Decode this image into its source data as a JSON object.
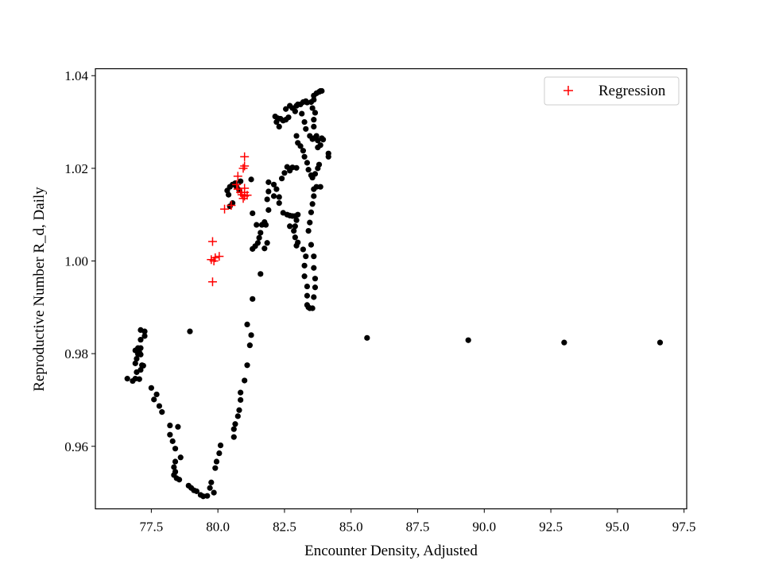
{
  "chart_data": {
    "type": "scatter",
    "title": "",
    "xlabel": "Encounter Density, Adjusted",
    "ylabel": "Reproductive Number R_d, Daily",
    "xlim": [
      75.4,
      97.6
    ],
    "ylim": [
      0.9465,
      1.0415
    ],
    "xticks": [
      77.5,
      80.0,
      82.5,
      85.0,
      87.5,
      90.0,
      92.5,
      95.0,
      97.5
    ],
    "xtick_labels": [
      "77.5",
      "80.0",
      "82.5",
      "85.0",
      "87.5",
      "90.0",
      "92.5",
      "95.0",
      "97.5"
    ],
    "yticks": [
      0.96,
      0.98,
      1.0,
      1.02,
      1.04
    ],
    "ytick_labels": [
      "0.96",
      "0.98",
      "1.00",
      "1.02",
      "1.04"
    ],
    "grid": false,
    "legend_position": "top-right",
    "series": [
      {
        "color": "#000000",
        "marker": "dot",
        "points": [
          [
            76.6,
            0.9746
          ],
          [
            76.8,
            0.9741
          ],
          [
            76.9,
            0.9746
          ],
          [
            76.95,
            0.976
          ],
          [
            77.05,
            0.9745
          ],
          [
            77.1,
            0.9765
          ],
          [
            77.15,
            0.9775
          ],
          [
            77.2,
            0.9774
          ],
          [
            76.9,
            0.9779
          ],
          [
            76.95,
            0.9789
          ],
          [
            77.0,
            0.9799
          ],
          [
            77.1,
            0.9798
          ],
          [
            77.1,
            0.9812
          ],
          [
            76.9,
            0.9807
          ],
          [
            77.0,
            0.9812
          ],
          [
            77.05,
            0.9803
          ],
          [
            77.1,
            0.983
          ],
          [
            77.1,
            0.9851
          ],
          [
            77.25,
            0.9848
          ],
          [
            77.25,
            0.9838
          ],
          [
            77.5,
            0.9726
          ],
          [
            77.7,
            0.9712
          ],
          [
            77.6,
            0.9701
          ],
          [
            77.8,
            0.9687
          ],
          [
            77.9,
            0.9674
          ],
          [
            78.2,
            0.9645
          ],
          [
            78.2,
            0.9625
          ],
          [
            78.3,
            0.9611
          ],
          [
            78.4,
            0.9595
          ],
          [
            78.5,
            0.9642
          ],
          [
            78.6,
            0.9576
          ],
          [
            78.4,
            0.9567
          ],
          [
            78.35,
            0.9555
          ],
          [
            78.4,
            0.9545
          ],
          [
            78.35,
            0.9538
          ],
          [
            78.45,
            0.9531
          ],
          [
            78.55,
            0.9528
          ],
          [
            78.9,
            0.9515
          ],
          [
            79.0,
            0.951
          ],
          [
            79.1,
            0.9505
          ],
          [
            79.2,
            0.9503
          ],
          [
            79.35,
            0.9495
          ],
          [
            79.45,
            0.9492
          ],
          [
            79.6,
            0.9493
          ],
          [
            79.7,
            0.951
          ],
          [
            79.75,
            0.9522
          ],
          [
            79.85,
            0.95
          ],
          [
            79.9,
            0.9553
          ],
          [
            79.95,
            0.9567
          ],
          [
            80.05,
            0.9585
          ],
          [
            80.1,
            0.9602
          ],
          [
            78.95,
            0.9848
          ],
          [
            80.6,
            0.962
          ],
          [
            80.6,
            0.9637
          ],
          [
            80.65,
            0.9648
          ],
          [
            80.75,
            0.9665
          ],
          [
            80.8,
            0.9678
          ],
          [
            80.85,
            0.97
          ],
          [
            80.85,
            0.9716
          ],
          [
            81.0,
            0.9742
          ],
          [
            81.1,
            0.9775
          ],
          [
            81.2,
            0.9818
          ],
          [
            81.25,
            0.984
          ],
          [
            81.1,
            0.9863
          ],
          [
            81.3,
            0.9918
          ],
          [
            81.6,
            0.9972
          ],
          [
            81.3,
            1.0026
          ],
          [
            81.4,
            1.0032
          ],
          [
            81.5,
            1.0039
          ],
          [
            81.55,
            1.005
          ],
          [
            81.6,
            1.0061
          ],
          [
            81.45,
            1.0078
          ],
          [
            81.65,
            1.0078
          ],
          [
            81.8,
            1.0078
          ],
          [
            81.3,
            1.0103
          ],
          [
            81.25,
            1.0176
          ],
          [
            80.55,
            1.0125
          ],
          [
            80.45,
            1.0118
          ],
          [
            80.4,
            1.0143
          ],
          [
            80.35,
            1.0152
          ],
          [
            80.45,
            1.016
          ],
          [
            80.55,
            1.0165
          ],
          [
            80.65,
            1.0168
          ],
          [
            80.85,
            1.0172
          ],
          [
            80.7,
            1.016
          ],
          [
            80.8,
            1.0153
          ],
          [
            81.75,
            1.0027
          ],
          [
            81.85,
            1.0039
          ],
          [
            81.75,
            1.0084
          ],
          [
            81.9,
            1.011
          ],
          [
            81.85,
            1.0133
          ],
          [
            81.9,
            1.015
          ],
          [
            81.9,
            1.017
          ],
          [
            82.1,
            1.014
          ],
          [
            82.1,
            1.0165
          ],
          [
            82.2,
            1.0155
          ],
          [
            82.3,
            1.0138
          ],
          [
            82.4,
            1.0178
          ],
          [
            82.5,
            1.019
          ],
          [
            82.6,
            1.0203
          ],
          [
            82.7,
            1.0195
          ],
          [
            82.8,
            1.0202
          ],
          [
            82.95,
            1.0201
          ],
          [
            82.3,
            1.0125
          ],
          [
            82.45,
            1.0104
          ],
          [
            82.6,
            1.01
          ],
          [
            82.7,
            1.0098
          ],
          [
            82.8,
            1.0097
          ],
          [
            82.9,
            1.0097
          ],
          [
            82.95,
            1.0088
          ],
          [
            82.85,
            1.0065
          ],
          [
            82.9,
            1.0051
          ],
          [
            83.0,
            1.004
          ],
          [
            82.95,
            1.0033
          ],
          [
            82.7,
            1.0075
          ],
          [
            82.9,
            1.0075
          ],
          [
            83.0,
            1.01
          ],
          [
            83.2,
            1.0025
          ],
          [
            83.3,
            1.001
          ],
          [
            83.25,
            0.999
          ],
          [
            83.25,
            0.9967
          ],
          [
            83.35,
            0.9945
          ],
          [
            83.35,
            0.9925
          ],
          [
            83.35,
            0.9905
          ],
          [
            83.4,
            0.99
          ],
          [
            83.45,
            0.9898
          ],
          [
            83.55,
            0.9898
          ],
          [
            83.6,
            0.9922
          ],
          [
            83.65,
            0.9943
          ],
          [
            83.65,
            0.9962
          ],
          [
            83.6,
            0.9985
          ],
          [
            83.6,
            1.001
          ],
          [
            83.5,
            1.0035
          ],
          [
            83.4,
            1.0065
          ],
          [
            83.45,
            1.0083
          ],
          [
            83.5,
            1.0105
          ],
          [
            83.55,
            1.0123
          ],
          [
            83.6,
            1.014
          ],
          [
            83.6,
            1.0155
          ],
          [
            83.7,
            1.016
          ],
          [
            83.85,
            1.016
          ],
          [
            83.55,
            1.018
          ],
          [
            83.65,
            1.0188
          ],
          [
            83.75,
            1.02
          ],
          [
            83.8,
            1.0208
          ],
          [
            83.5,
            1.0185
          ],
          [
            83.4,
            1.0197
          ],
          [
            83.35,
            1.0212
          ],
          [
            83.25,
            1.0225
          ],
          [
            83.2,
            1.0238
          ],
          [
            83.1,
            1.0248
          ],
          [
            83.0,
            1.0255
          ],
          [
            82.95,
            1.027
          ],
          [
            82.3,
            1.029
          ],
          [
            82.2,
            1.03
          ],
          [
            82.15,
            1.0312
          ],
          [
            82.25,
            1.0308
          ],
          [
            82.35,
            1.0307
          ],
          [
            82.45,
            1.0303
          ],
          [
            82.55,
            1.0305
          ],
          [
            82.65,
            1.031
          ],
          [
            82.55,
            1.0328
          ],
          [
            82.7,
            1.0335
          ],
          [
            82.8,
            1.033
          ],
          [
            82.9,
            1.0323
          ],
          [
            82.95,
            1.0335
          ],
          [
            83.0,
            1.0338
          ],
          [
            83.1,
            1.0338
          ],
          [
            83.2,
            1.0343
          ],
          [
            83.3,
            1.0345
          ],
          [
            83.35,
            1.0342
          ],
          [
            83.15,
            1.0318
          ],
          [
            83.25,
            1.03
          ],
          [
            83.3,
            1.0285
          ],
          [
            83.45,
            1.027
          ],
          [
            83.55,
            1.0263
          ],
          [
            83.6,
            1.0265
          ],
          [
            83.7,
            1.027
          ],
          [
            83.75,
            1.026
          ],
          [
            83.85,
            1.025
          ],
          [
            83.75,
            1.0245
          ],
          [
            83.9,
            1.0265
          ],
          [
            83.95,
            1.0262
          ],
          [
            83.6,
            1.029
          ],
          [
            83.6,
            1.0305
          ],
          [
            83.65,
            1.032
          ],
          [
            83.55,
            1.033
          ],
          [
            83.5,
            1.0343
          ],
          [
            83.6,
            1.0348
          ],
          [
            83.6,
            1.0357
          ],
          [
            83.7,
            1.0362
          ],
          [
            83.8,
            1.0365
          ],
          [
            83.85,
            1.0367
          ],
          [
            83.9,
            1.0367
          ],
          [
            84.15,
            1.0225
          ],
          [
            84.15,
            1.0232
          ],
          [
            85.6,
            0.9834
          ],
          [
            89.4,
            0.9829
          ],
          [
            93.0,
            0.9824
          ],
          [
            96.6,
            0.9824
          ]
        ]
      },
      {
        "name": "Regression",
        "color": "#ff0000",
        "marker": "plus",
        "points": [
          [
            79.8,
            1.0042
          ],
          [
            79.75,
            1.0003
          ],
          [
            79.85,
            1.0
          ],
          [
            79.9,
            1.0007
          ],
          [
            80.05,
            1.001
          ],
          [
            79.8,
            0.9955
          ],
          [
            80.25,
            1.0112
          ],
          [
            80.5,
            1.012
          ],
          [
            80.75,
            1.0183
          ],
          [
            81.0,
            1.0225
          ],
          [
            81.0,
            1.0205
          ],
          [
            80.95,
            1.02
          ],
          [
            81.0,
            1.0157
          ],
          [
            81.0,
            1.0148
          ],
          [
            81.0,
            1.014
          ],
          [
            80.9,
            1.0143
          ],
          [
            80.85,
            1.0148
          ],
          [
            81.1,
            1.0142
          ],
          [
            80.95,
            1.0135
          ],
          [
            80.7,
            1.0165
          ],
          [
            80.75,
            1.0155
          ]
        ]
      }
    ]
  }
}
